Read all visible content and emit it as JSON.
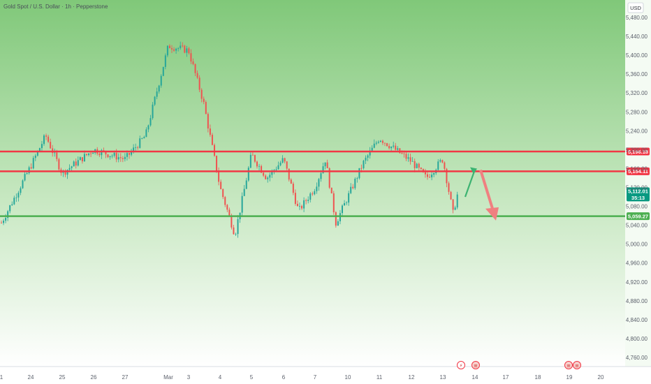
{
  "header": {
    "title": "Gold Spot / U.S. Dollar · 1h · Pepperstone"
  },
  "currency_button": {
    "label": "USD"
  },
  "colors": {
    "bg_top": "#80c879",
    "bg_bottom": "#ffffff",
    "up": "#26a69a",
    "down": "#ef5350",
    "resistance": "#f23645",
    "support": "#4caf50",
    "last_price": "#089981",
    "arrow_up": "#3cb371",
    "arrow_down": "#f08080"
  },
  "price_labels": {
    "resistance_1": "5,196.18",
    "resistance_2": "5,154.11",
    "last_price": "5,112.01",
    "countdown": "35:13",
    "support": "5,059.27"
  },
  "event_icons": [
    {
      "icon": "lightning-icon",
      "glyph": "⚡"
    },
    {
      "icon": "us-flag-icon",
      "glyph": "≡"
    },
    {
      "icon": "us-flag-icon",
      "glyph": "≡"
    },
    {
      "icon": "us-flag-icon",
      "glyph": "≡"
    }
  ],
  "chart_data": {
    "type": "candlestick",
    "title": "Gold Spot / U.S. Dollar · 1h · Pepperstone",
    "currency": "USD",
    "y_axis": {
      "range": [
        4740,
        5500
      ],
      "ticks": [
        "5,480.00",
        "5,440.00",
        "5,400.00",
        "5,360.00",
        "5,320.00",
        "5,280.00",
        "5,240.00",
        "5,200.00",
        "5,160.00",
        "5,120.00",
        "5,080.00",
        "5,040.00",
        "5,000.00",
        "4,960.00",
        "4,920.00",
        "4,880.00",
        "4,840.00",
        "4,800.00",
        "4,760.00"
      ]
    },
    "x_axis": {
      "ticks": [
        "1",
        "24",
        "25",
        "26",
        "27",
        "Mar",
        "3",
        "4",
        "5",
        "6",
        "7",
        "10",
        "11",
        "12",
        "13",
        "14",
        "17",
        "18",
        "19",
        "20"
      ]
    },
    "horizontal_levels": [
      {
        "name": "resistance",
        "price": 5196.18,
        "label": "5,196.18"
      },
      {
        "name": "resistance",
        "price": 5154.11,
        "label": "5,154.11"
      },
      {
        "name": "support",
        "price": 5059.27,
        "label": "5,059.27"
      }
    ],
    "last_price": 5112.01,
    "countdown": "35:13",
    "price_path": [
      {
        "x": "1",
        "y": 5045
      },
      {
        "x": "24",
        "y": 5165
      },
      {
        "x": "24",
        "y": 5230
      },
      {
        "x": "25",
        "y": 5150
      },
      {
        "x": "26",
        "y": 5200
      },
      {
        "x": "27",
        "y": 5180
      },
      {
        "x": "27",
        "y": 5230
      },
      {
        "x": "Mar",
        "y": 5420
      },
      {
        "x": "3",
        "y": 5410
      },
      {
        "x": "3",
        "y": 5300
      },
      {
        "x": "4",
        "y": 5120
      },
      {
        "x": "4",
        "y": 5020
      },
      {
        "x": "5",
        "y": 5190
      },
      {
        "x": "5",
        "y": 5140
      },
      {
        "x": "6",
        "y": 5180
      },
      {
        "x": "6",
        "y": 5070
      },
      {
        "x": "7",
        "y": 5120
      },
      {
        "x": "7",
        "y": 5180
      },
      {
        "x": "7",
        "y": 5045
      },
      {
        "x": "10",
        "y": 5100
      },
      {
        "x": "10",
        "y": 5170
      },
      {
        "x": "11",
        "y": 5225
      },
      {
        "x": "12",
        "y": 5175
      },
      {
        "x": "12",
        "y": 5140
      },
      {
        "x": "13",
        "y": 5180
      },
      {
        "x": "13",
        "y": 5065
      },
      {
        "x": "13",
        "y": 5112
      }
    ],
    "projection": {
      "up_arrow": [
        {
          "x": "13",
          "y": 5100
        },
        {
          "x": "14",
          "y": 5160
        }
      ],
      "down_arrow": [
        {
          "x": "14",
          "y": 5160
        },
        {
          "x": "14",
          "y": 5050
        }
      ]
    },
    "grid": false,
    "legend": "none"
  }
}
